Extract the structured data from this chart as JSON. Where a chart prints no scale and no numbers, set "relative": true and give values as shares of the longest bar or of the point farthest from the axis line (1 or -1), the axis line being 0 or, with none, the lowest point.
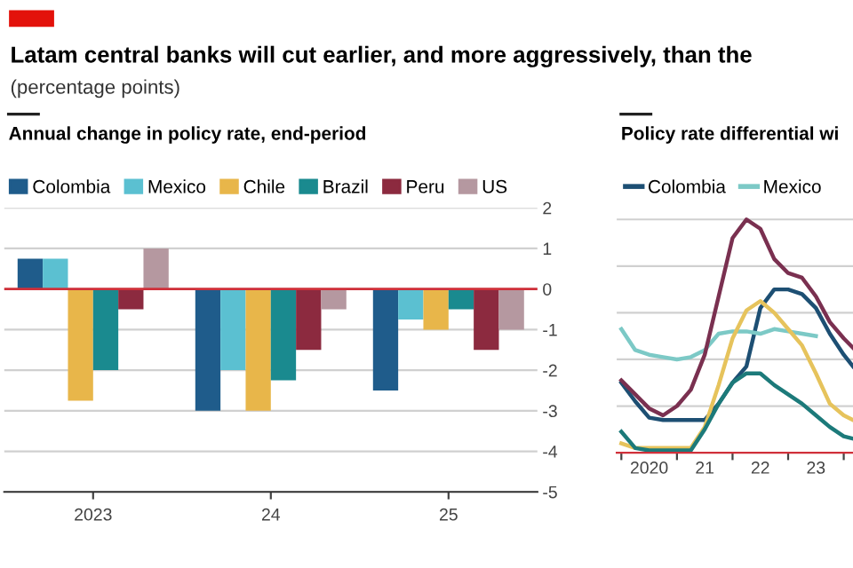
{
  "chart_data": [
    {
      "type": "bar",
      "title": "Annual change in policy rate, end-period",
      "categories": [
        "2023",
        "24",
        "25"
      ],
      "series": [
        {
          "name": "Colombia",
          "color": "#1f5c8b",
          "values": [
            0.75,
            -3.0,
            -2.5
          ]
        },
        {
          "name": "Mexico",
          "color": "#5bc0d1",
          "values": [
            0.75,
            -2.0,
            -0.75
          ]
        },
        {
          "name": "Chile",
          "color": "#e8b64a",
          "values": [
            -2.75,
            -3.0,
            -1.0
          ]
        },
        {
          "name": "Brazil",
          "color": "#1a8a8f",
          "values": [
            -2.0,
            -2.25,
            -0.5
          ]
        },
        {
          "name": "Peru",
          "color": "#8c2a3f",
          "values": [
            -0.5,
            -1.5,
            -1.5
          ]
        },
        {
          "name": "US",
          "color": "#b598a0",
          "values": [
            1.0,
            -0.5,
            -1.0
          ]
        }
      ],
      "ylim": [
        -5,
        2
      ],
      "yticks": [
        -5,
        -4,
        -3,
        -2,
        -1,
        0,
        1,
        2
      ],
      "grid": "y",
      "legend": "top left",
      "ref_lines": [
        {
          "axis": "y",
          "value": 0,
          "color": "#d0303a"
        }
      ],
      "annotations": [
        "Latam central banks will cut earlier, and more aggressively, than the",
        "(percentage points)"
      ]
    },
    {
      "type": "line",
      "title": "Policy rate differential wi",
      "relative": true,
      "x": [
        "2020-01",
        "2020-04",
        "2020-07",
        "2020-10",
        "2021-01",
        "2021-04",
        "2021-07",
        "2021-10",
        "2022-01",
        "2022-04",
        "2022-07",
        "2022-10",
        "2023-01",
        "2023-04",
        "2023-07",
        "2023-10",
        "2024-01",
        "2024-03"
      ],
      "series": [
        {
          "name": "Colombia",
          "color": "#1d4f73",
          "values": [
            0.3,
            0.22,
            0.15,
            0.14,
            0.14,
            0.14,
            0.14,
            0.21,
            0.3,
            0.37,
            0.62,
            0.7,
            0.7,
            0.68,
            0.62,
            0.51,
            0.42,
            0.37
          ]
        },
        {
          "name": "Mexico",
          "color": "#7cc9c6",
          "values": [
            0.53,
            0.44,
            0.42,
            0.41,
            0.4,
            0.41,
            0.44,
            0.51,
            0.52,
            0.52,
            0.51,
            0.53,
            0.52,
            0.51,
            0.5,
            null,
            null,
            null
          ]
        },
        {
          "color": "#7a3050",
          "values": [
            0.31,
            0.25,
            0.19,
            0.16,
            0.2,
            0.27,
            0.42,
            0.67,
            0.92,
            1.0,
            0.96,
            0.83,
            0.77,
            0.75,
            0.67,
            0.56,
            0.49,
            0.45
          ]
        },
        {
          "color": "#e6c35c",
          "values": [
            0.04,
            0.02,
            0.02,
            0.02,
            0.02,
            0.02,
            0.11,
            0.29,
            0.49,
            0.61,
            0.65,
            0.6,
            0.53,
            0.46,
            0.34,
            0.21,
            0.16,
            0.14
          ]
        },
        {
          "color": "#1c7a7a",
          "values": [
            0.09,
            0.02,
            0.01,
            0.01,
            0.01,
            0.01,
            0.1,
            0.21,
            0.3,
            0.34,
            0.34,
            0.29,
            0.25,
            0.21,
            0.16,
            0.11,
            0.07,
            0.06
          ]
        }
      ],
      "xlim": [
        "2019-12",
        "2024-03"
      ],
      "xticks": [
        {
          "value": "2020-01",
          "label": null
        },
        {
          "value": "2020-07",
          "label": "2020"
        },
        {
          "value": "2021-01",
          "label": null
        },
        {
          "value": "2021-07",
          "label": "21"
        },
        {
          "value": "2022-01",
          "label": null
        },
        {
          "value": "2022-07",
          "label": "22"
        },
        {
          "value": "2023-01",
          "label": null
        },
        {
          "value": "2023-07",
          "label": "23"
        },
        {
          "value": "2024-01",
          "label": null
        }
      ],
      "grid": "y",
      "legend": "top left",
      "tick_labels": "x",
      "marker": "none",
      "line_style": "solid"
    }
  ]
}
